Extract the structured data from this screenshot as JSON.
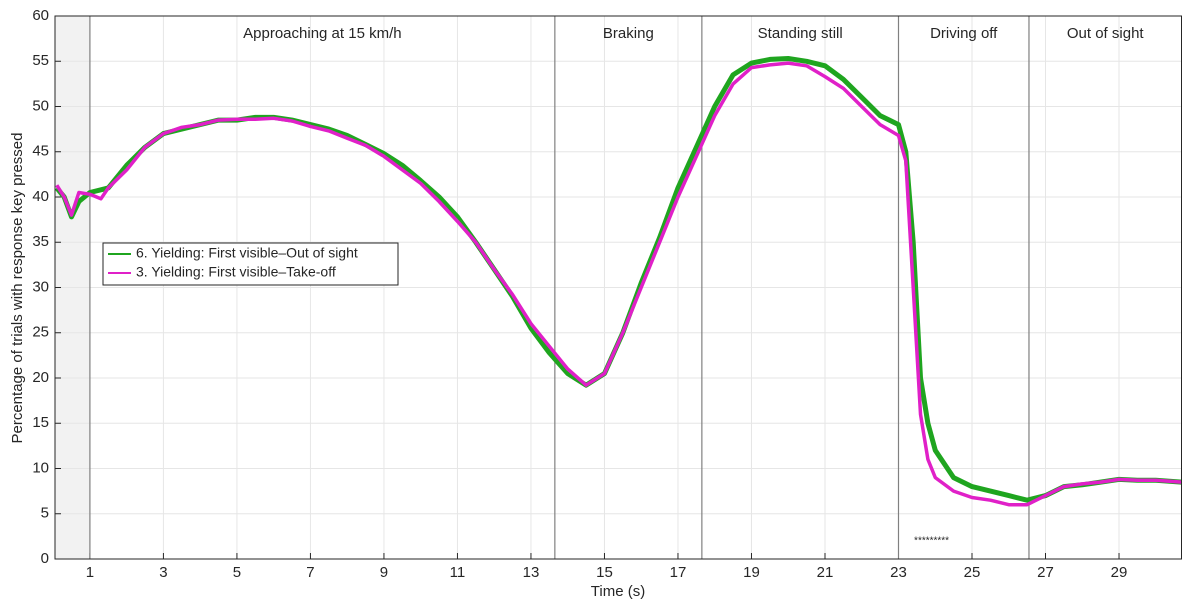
{
  "chart_data": {
    "type": "line",
    "xlabel": "Time (s)",
    "ylabel": "Percentage of trials with response key pressed",
    "xlim": [
      0.05,
      30.7
    ],
    "ylim": [
      0,
      60
    ],
    "xticks": [
      1,
      3,
      5,
      7,
      9,
      11,
      13,
      15,
      17,
      19,
      21,
      23,
      25,
      27,
      29
    ],
    "yticks": [
      0,
      5,
      10,
      15,
      20,
      25,
      30,
      35,
      40,
      45,
      50,
      55,
      60
    ],
    "grid": true,
    "legend": "west",
    "phase_boundaries": [
      1,
      13.65,
      17.65,
      23,
      26.55
    ],
    "phase_labels": [
      "Approaching at 15 km/h",
      "Braking",
      "Standing still",
      "Driving off",
      "Out of sight"
    ],
    "annotations": [
      {
        "text": "*********",
        "x": 23.9,
        "y": 2
      }
    ],
    "x": [
      0.1,
      0.3,
      0.5,
      0.7,
      1,
      1.3,
      1.5,
      2,
      2.5,
      3,
      3.5,
      4,
      4.5,
      5,
      5.5,
      6,
      6.5,
      7,
      7.5,
      8,
      8.5,
      9,
      9.5,
      10,
      10.5,
      11,
      11.5,
      12,
      12.5,
      13,
      13.5,
      14,
      14.5,
      15,
      15.5,
      16,
      16.5,
      17,
      17.5,
      18,
      18.5,
      19,
      19.5,
      20,
      20.5,
      21,
      21.5,
      22,
      22.5,
      23,
      23.2,
      23.4,
      23.6,
      23.8,
      24,
      24.5,
      25,
      25.5,
      26,
      26.5,
      27,
      27.5,
      28,
      28.5,
      29,
      29.5,
      30,
      30.7
    ],
    "series": [
      {
        "name": "6. Yielding: First visible–Out of sight",
        "color": "#1fa51f",
        "values": [
          41,
          40,
          37.8,
          39.5,
          40.5,
          40.8,
          41,
          43.5,
          45.5,
          47,
          47.5,
          48,
          48.5,
          48.5,
          48.8,
          48.8,
          48.5,
          48,
          47.5,
          46.8,
          45.8,
          44.8,
          43.5,
          41.8,
          40,
          37.8,
          35,
          32,
          29,
          25.5,
          22.8,
          20.5,
          19.2,
          20.5,
          25,
          30.5,
          35.5,
          41,
          45.5,
          50,
          53.5,
          54.8,
          55.2,
          55.3,
          55,
          54.5,
          53,
          51,
          49,
          48,
          45,
          35,
          20,
          15,
          12,
          9,
          8,
          7.5,
          7,
          6.5,
          7,
          8,
          8.2,
          8.5,
          8.8,
          8.7,
          8.7,
          8.5
        ]
      },
      {
        "name": "3. Yielding: First visible–Take-off",
        "color": "#e020c8",
        "values": [
          41.3,
          40,
          38,
          40.5,
          40.3,
          39.8,
          41,
          43,
          45.5,
          47,
          47.7,
          48,
          48.5,
          48.6,
          48.6,
          48.7,
          48.4,
          47.8,
          47.3,
          46.5,
          45.7,
          44.5,
          43,
          41.5,
          39.5,
          37.3,
          35,
          32,
          29.2,
          26,
          23.5,
          21,
          19.2,
          20.5,
          25,
          30,
          35,
          40,
          44.5,
          49,
          52.5,
          54.3,
          54.6,
          54.8,
          54.5,
          53.3,
          52,
          50,
          48,
          46.8,
          44,
          30,
          16,
          11,
          9,
          7.5,
          6.8,
          6.5,
          6,
          6,
          7,
          8,
          8.3,
          8.5,
          8.8,
          8.7,
          8.7,
          8.5
        ]
      }
    ]
  }
}
